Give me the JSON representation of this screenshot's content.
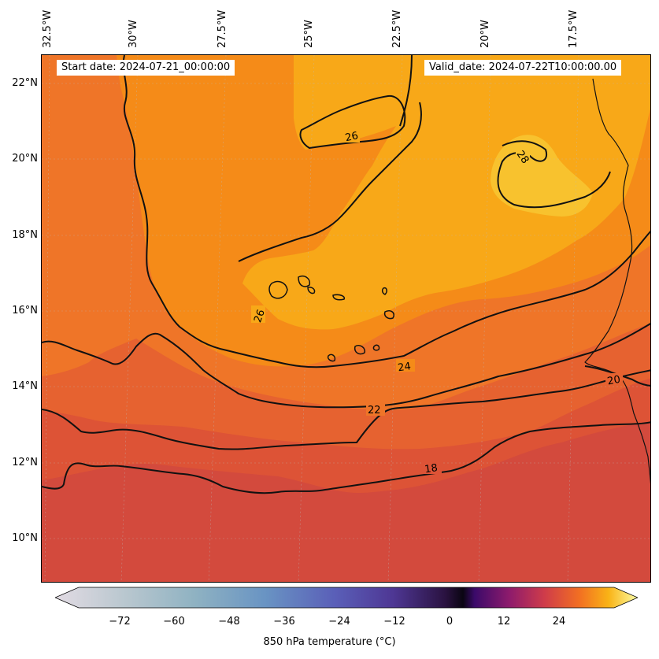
{
  "map": {
    "start_date": "Start date: 2024-07-21_00:00:00",
    "valid_date": "Valid_date: 2024-07-22T10:00:00.00",
    "lon_labels": [
      "32.5°W",
      "30°W",
      "27.5°W",
      "25°W",
      "22.5°W",
      "20°W",
      "17.5°W"
    ],
    "lat_labels": [
      "22°N",
      "20°N",
      "18°N",
      "16°N",
      "14°N",
      "12°N",
      "10°N"
    ],
    "contour_labels": [
      "26",
      "28",
      "26",
      "24",
      "22",
      "20",
      "18"
    ],
    "colors": {
      "t_28": "#f8c22e",
      "t_26": "#f8a818",
      "t_24": "#f58b18",
      "t_22": "#ef7528",
      "t_20": "#e66230",
      "t_18": "#dd5336",
      "t_16": "#d34a3d"
    }
  },
  "colorbar": {
    "label": "850 hPa temperature (°C)",
    "ticks": [
      "−72",
      "−60",
      "−48",
      "−36",
      "−24",
      "−12",
      "0",
      "12",
      "24"
    ],
    "colormap": "inferno-like with grey-blue-purple negative range"
  }
}
